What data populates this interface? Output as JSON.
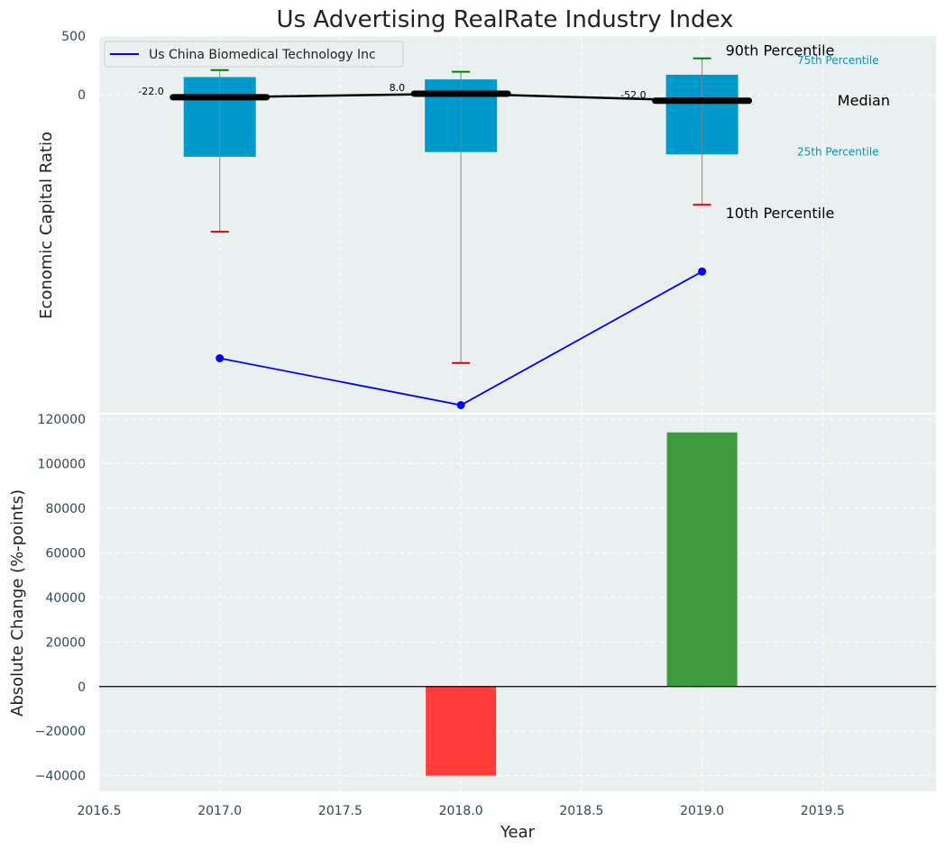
{
  "colors": {
    "panel_bg": "#eaeff0",
    "box": "#0099cc",
    "whisker_line": "#888888",
    "p90_cap": "#008000",
    "p10_cap": "#e00000",
    "median": "#000000",
    "company_line": "#0000ff",
    "bar_negative": "#ff3b3b",
    "bar_positive": "#3a9a3c",
    "grid": "#ffffff",
    "pct_text": "#0099bb"
  },
  "chart_data": [
    {
      "type": "box",
      "title": "Us Advertising RealRate Industry Index",
      "ylabel": "Economic Capital Ratio",
      "ylim_top": 500,
      "y_ticks": [
        500,
        0
      ],
      "x": [
        2017,
        2018,
        2019
      ],
      "p90": [
        210,
        195,
        310
      ],
      "p75": [
        150,
        130,
        170
      ],
      "median": [
        -22,
        8,
        -52
      ],
      "p25": [
        -530,
        -490,
        -510
      ],
      "p10": [
        -1170,
        -2290,
        -940
      ],
      "median_labels": [
        "-22.0",
        "8.0",
        "-52.0"
      ],
      "company_series": {
        "name": "Us China Biomedical Technology Inc",
        "values": [
          -2250,
          -2650,
          -1510
        ]
      },
      "legend": {
        "label": "Us China Biomedical Technology Inc",
        "location": "upper-left"
      },
      "annotations": {
        "p90": "90th Percentile",
        "p75": "75th Percentile",
        "median": "Median",
        "p25": "25th Percentile",
        "p10": "10th Percentile"
      }
    },
    {
      "type": "bar",
      "xlabel": "Year",
      "ylabel": "Absolute Change (%-points)",
      "x": [
        2017,
        2018,
        2019
      ],
      "values": [
        0,
        -40000,
        114000
      ],
      "y_ticks": [
        120000,
        100000,
        80000,
        60000,
        40000,
        20000,
        0,
        -20000,
        -40000
      ],
      "y_tick_labels": [
        "120000",
        "100000",
        "80000",
        "60000",
        "40000",
        "20000",
        "0",
        "−20000",
        "−40000"
      ],
      "ylim": [
        -47000,
        122000
      ],
      "xlim": [
        2016.5,
        2019.97
      ],
      "x_ticks": [
        2016.5,
        2017.0,
        2017.5,
        2018.0,
        2018.5,
        2019.0,
        2019.5
      ],
      "x_tick_labels": [
        "2016.5",
        "2017.0",
        "2017.5",
        "2018.0",
        "2018.5",
        "2019.0",
        "2019.5"
      ]
    }
  ]
}
